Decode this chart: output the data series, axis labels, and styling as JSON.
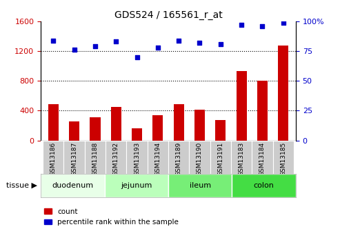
{
  "title": "GDS524 / 165561_r_at",
  "categories": [
    "GSM13186",
    "GSM13187",
    "GSM13188",
    "GSM13192",
    "GSM13193",
    "GSM13194",
    "GSM13189",
    "GSM13190",
    "GSM13191",
    "GSM13183",
    "GSM13184",
    "GSM13185"
  ],
  "bar_values": [
    490,
    255,
    310,
    450,
    165,
    340,
    490,
    415,
    275,
    930,
    800,
    1280
  ],
  "scatter_values": [
    84,
    76,
    79,
    83,
    70,
    78,
    84,
    82,
    81,
    97,
    96,
    99
  ],
  "tissues": [
    {
      "label": "duodenum",
      "start": 0,
      "end": 3,
      "color": "#e8ffe8"
    },
    {
      "label": "jejunum",
      "start": 3,
      "end": 6,
      "color": "#bbffbb"
    },
    {
      "label": "ileum",
      "start": 6,
      "end": 9,
      "color": "#77ee77"
    },
    {
      "label": "colon",
      "start": 9,
      "end": 12,
      "color": "#44dd44"
    }
  ],
  "bar_color": "#cc0000",
  "scatter_color": "#0000cc",
  "sample_bg_color": "#cccccc",
  "ylim_left": [
    0,
    1600
  ],
  "ylim_right": [
    0,
    100
  ],
  "yticks_left": [
    0,
    400,
    800,
    1200,
    1600
  ],
  "yticks_right": [
    0,
    25,
    50,
    75,
    100
  ],
  "grid_values": [
    400,
    800,
    1200
  ],
  "legend_count_label": "count",
  "legend_pct_label": "percentile rank within the sample",
  "tissue_label": "tissue",
  "bar_width": 0.5
}
